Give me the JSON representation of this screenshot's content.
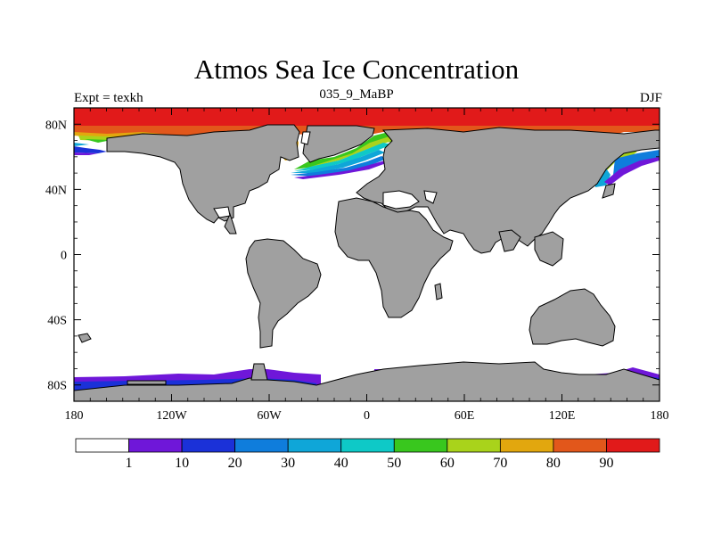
{
  "title": "Atmos Sea Ice Concentration",
  "subtitle_left": "Expt = texkh",
  "subtitle_center": "035_9_MaBP",
  "subtitle_right": "DJF",
  "chart_data": {
    "type": "heatmap",
    "projection": "cylindrical-equidistant",
    "variable": "Atmos Sea Ice Concentration",
    "units": "%",
    "x_range": [
      -180,
      180
    ],
    "y_range": [
      -90,
      90
    ],
    "x_ticks": [
      {
        "value": -180,
        "label": "180"
      },
      {
        "value": -120,
        "label": "120W"
      },
      {
        "value": -60,
        "label": "60W"
      },
      {
        "value": 0,
        "label": "0"
      },
      {
        "value": 60,
        "label": "60E"
      },
      {
        "value": 120,
        "label": "120E"
      },
      {
        "value": 180,
        "label": "180"
      }
    ],
    "y_ticks": [
      {
        "value": 80,
        "label": "80N"
      },
      {
        "value": 40,
        "label": "40N"
      },
      {
        "value": 0,
        "label": "0"
      },
      {
        "value": -40,
        "label": "40S"
      },
      {
        "value": -80,
        "label": "80S"
      }
    ],
    "colorbar": {
      "levels": [
        "1",
        "10",
        "20",
        "30",
        "40",
        "50",
        "60",
        "70",
        "80",
        "90"
      ],
      "colors": [
        "#ffffff",
        "#6f17d9",
        "#1b31d8",
        "#0f7ddc",
        "#0fa6d8",
        "#0ec9c7",
        "#39c71e",
        "#a9d31b",
        "#e2a70e",
        "#e2571b",
        "#e11a1a"
      ]
    },
    "land_color": "#a0a0a0",
    "ice_bands": [
      {
        "region": "arctic-north",
        "lon": [
          -180,
          180
        ],
        "lat": [
          78,
          90
        ],
        "value_class": 10
      },
      {
        "region": "arctic-margin-pacific",
        "lon": [
          -180,
          -110
        ],
        "lat": [
          74,
          78
        ],
        "value_class": 7
      },
      {
        "region": "arctic-margin-atlantic",
        "lon": [
          -40,
          20
        ],
        "lat": [
          64,
          76
        ],
        "value_class": 5
      },
      {
        "region": "bering-north-pacific",
        "lon": [
          -180,
          -150
        ],
        "lat": [
          60,
          66
        ],
        "value_class": 2
      },
      {
        "region": "okhotsk",
        "lon": [
          140,
          180
        ],
        "lat": [
          48,
          66
        ],
        "value_class": 4
      },
      {
        "region": "antarctic-pacific",
        "lon": [
          -180,
          -70
        ],
        "lat": [
          -85,
          -77
        ],
        "value_class": 1
      },
      {
        "region": "ross-sea",
        "lon": [
          150,
          180
        ],
        "lat": [
          -85,
          -78
        ],
        "value_class": 2
      }
    ]
  }
}
